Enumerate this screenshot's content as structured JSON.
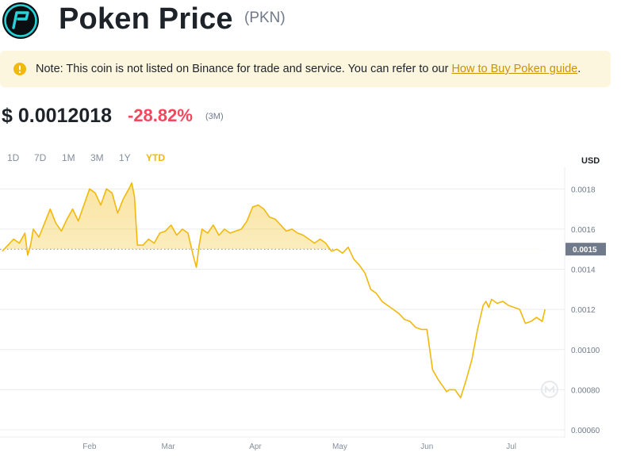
{
  "header": {
    "title": "Poken Price",
    "symbol": "(PKN)"
  },
  "note": {
    "text": "Note: This coin is not listed on Binance for trade and service. You can refer to our ",
    "link": "How to Buy Poken guide",
    "end": "."
  },
  "price": {
    "value": "$ 0.0012018",
    "change": "-28.82%",
    "period": "(3M)"
  },
  "ranges": [
    "1D",
    "7D",
    "1M",
    "3M",
    "1Y",
    "YTD"
  ],
  "active_range": "YTD",
  "currency": "USD",
  "colors": {
    "accent": "#f0b90b",
    "down": "#f6465d",
    "note_bg": "#fdf6de",
    "link": "#c99400",
    "line": "#f0b90b"
  },
  "chart_data": {
    "type": "area",
    "y_unit": "USD",
    "ylim": [
      0.0006,
      0.00188
    ],
    "yticks": [
      {
        "value": 0.0006,
        "label": "0.00060"
      },
      {
        "value": 0.0008,
        "label": "0.00080"
      },
      {
        "value": 0.001,
        "label": "0.00100"
      },
      {
        "value": 0.0012,
        "label": "0.0012"
      },
      {
        "value": 0.0014,
        "label": "0.0014"
      },
      {
        "value": 0.0016,
        "label": "0.0016"
      },
      {
        "value": 0.0018,
        "label": "0.0018"
      }
    ],
    "xlim": [
      "2022-01-01",
      "2022-07-20"
    ],
    "xticks": [
      {
        "date": "2022-02-01",
        "label": "Feb"
      },
      {
        "date": "2022-03-01",
        "label": "Mar"
      },
      {
        "date": "2022-04-01",
        "label": "Apr"
      },
      {
        "date": "2022-05-01",
        "label": "May"
      },
      {
        "date": "2022-06-01",
        "label": "Jun"
      },
      {
        "date": "2022-07-01",
        "label": "Jul"
      }
    ],
    "reference": {
      "value": 0.0015,
      "label": "0.0015"
    },
    "grid": true,
    "series": [
      {
        "x": [
          "2022-01-01",
          "2022-01-03",
          "2022-01-05",
          "2022-01-07",
          "2022-01-09",
          "2022-01-10",
          "2022-01-11",
          "2022-01-12",
          "2022-01-14",
          "2022-01-16",
          "2022-01-18",
          "2022-01-20",
          "2022-01-22",
          "2022-01-24",
          "2022-01-26",
          "2022-01-28",
          "2022-01-30",
          "2022-02-01",
          "2022-02-03",
          "2022-02-05",
          "2022-02-07",
          "2022-02-09",
          "2022-02-11",
          "2022-02-13",
          "2022-02-15",
          "2022-02-16",
          "2022-02-17",
          "2022-02-18",
          "2022-02-20",
          "2022-02-22",
          "2022-02-24",
          "2022-02-26",
          "2022-02-28",
          "2022-03-02",
          "2022-03-04",
          "2022-03-06",
          "2022-03-08",
          "2022-03-10",
          "2022-03-11",
          "2022-03-12",
          "2022-03-13",
          "2022-03-15",
          "2022-03-17",
          "2022-03-19",
          "2022-03-21",
          "2022-03-23",
          "2022-03-25",
          "2022-03-27",
          "2022-03-29",
          "2022-03-31",
          "2022-04-02",
          "2022-04-04",
          "2022-04-06",
          "2022-04-08",
          "2022-04-10",
          "2022-04-12",
          "2022-04-14",
          "2022-04-16",
          "2022-04-18",
          "2022-04-20",
          "2022-04-22",
          "2022-04-24",
          "2022-04-26",
          "2022-04-28",
          "2022-04-30",
          "2022-05-02",
          "2022-05-04",
          "2022-05-06",
          "2022-05-08",
          "2022-05-10",
          "2022-05-12",
          "2022-05-14",
          "2022-05-16",
          "2022-05-18",
          "2022-05-20",
          "2022-05-22",
          "2022-05-24",
          "2022-05-26",
          "2022-05-28",
          "2022-05-30",
          "2022-06-01",
          "2022-06-03",
          "2022-06-05",
          "2022-06-07",
          "2022-06-08",
          "2022-06-09",
          "2022-06-11",
          "2022-06-13",
          "2022-06-15",
          "2022-06-17",
          "2022-06-19",
          "2022-06-21",
          "2022-06-22",
          "2022-06-23",
          "2022-06-24",
          "2022-06-26",
          "2022-06-28",
          "2022-06-30",
          "2022-07-02",
          "2022-07-04",
          "2022-07-06",
          "2022-07-08",
          "2022-07-10",
          "2022-07-12",
          "2022-07-13"
        ],
        "y": [
          0.00149,
          0.00152,
          0.00155,
          0.00153,
          0.00158,
          0.00147,
          0.00152,
          0.0016,
          0.00156,
          0.00163,
          0.0017,
          0.00163,
          0.00159,
          0.00165,
          0.0017,
          0.00164,
          0.00172,
          0.0018,
          0.00178,
          0.00172,
          0.0018,
          0.00178,
          0.00168,
          0.00175,
          0.0018,
          0.00183,
          0.00176,
          0.00152,
          0.00152,
          0.00155,
          0.00153,
          0.00158,
          0.00159,
          0.00162,
          0.00157,
          0.0016,
          0.00158,
          0.00146,
          0.00141,
          0.00152,
          0.0016,
          0.00158,
          0.00162,
          0.00157,
          0.0016,
          0.00158,
          0.00159,
          0.0016,
          0.00164,
          0.00171,
          0.00172,
          0.0017,
          0.00166,
          0.00165,
          0.00162,
          0.00159,
          0.0016,
          0.00158,
          0.00157,
          0.00155,
          0.00153,
          0.00155,
          0.00153,
          0.00149,
          0.0015,
          0.00148,
          0.00151,
          0.00145,
          0.00142,
          0.00138,
          0.0013,
          0.00128,
          0.00124,
          0.00122,
          0.0012,
          0.00118,
          0.00115,
          0.00114,
          0.00111,
          0.0011,
          0.0011,
          0.0009,
          0.00085,
          0.00081,
          0.00079,
          0.0008,
          0.0008,
          0.00076,
          0.00085,
          0.00095,
          0.0011,
          0.00122,
          0.00124,
          0.00121,
          0.00125,
          0.00123,
          0.00124,
          0.00122,
          0.00121,
          0.0012,
          0.00113,
          0.00114,
          0.00116,
          0.00114,
          0.0012
        ]
      }
    ]
  }
}
